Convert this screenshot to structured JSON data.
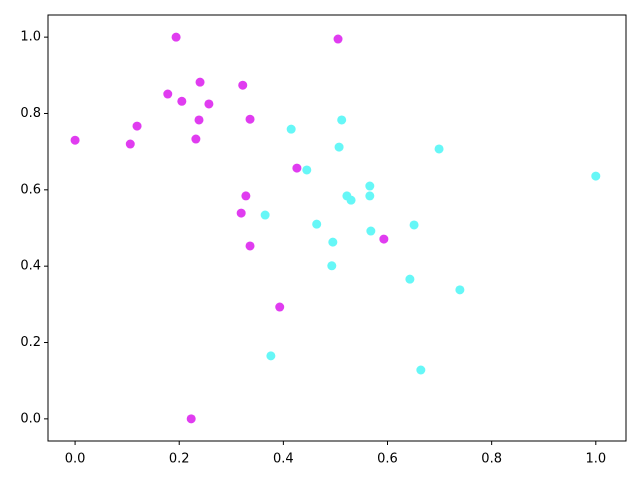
{
  "chart_data": {
    "type": "scatter",
    "series": [
      {
        "color": "#e03cf0",
        "x": [
          0.194,
          0.505,
          0.24,
          0.322,
          0.178,
          0.205,
          0.257,
          0.119,
          0.238,
          0.336,
          0.0,
          0.106,
          0.232,
          0.426,
          0.328,
          0.319,
          0.336,
          0.593,
          0.393,
          0.223
        ],
        "values": [
          1.0,
          0.995,
          0.882,
          0.874,
          0.851,
          0.832,
          0.825,
          0.767,
          0.783,
          0.785,
          0.73,
          0.72,
          0.733,
          0.657,
          0.584,
          0.539,
          0.453,
          0.471,
          0.293,
          0.0
        ]
      },
      {
        "color": "#66f7f7",
        "x": [
          0.415,
          0.512,
          0.445,
          0.507,
          0.699,
          1.0,
          0.566,
          0.566,
          0.522,
          0.53,
          0.365,
          0.464,
          0.651,
          0.568,
          0.495,
          0.493,
          0.643,
          0.739,
          0.376,
          0.664
        ],
        "values": [
          0.759,
          0.783,
          0.652,
          0.712,
          0.707,
          0.636,
          0.61,
          0.584,
          0.584,
          0.573,
          0.534,
          0.51,
          0.508,
          0.492,
          0.463,
          0.401,
          0.366,
          0.338,
          0.165,
          0.128
        ]
      }
    ],
    "xlim": [
      -0.052,
      1.058
    ],
    "ylim": [
      -0.058,
      1.058
    ],
    "xticks": [
      {
        "value": 0,
        "label": "0.0"
      },
      0.2,
      0.4,
      0.6,
      0.8,
      {
        "value": 1,
        "label": "1.0"
      }
    ],
    "yticks": [
      {
        "value": 0,
        "label": "0.0"
      },
      0.2,
      0.4,
      0.6,
      0.8,
      {
        "value": 1,
        "label": "1.0"
      }
    ]
  }
}
